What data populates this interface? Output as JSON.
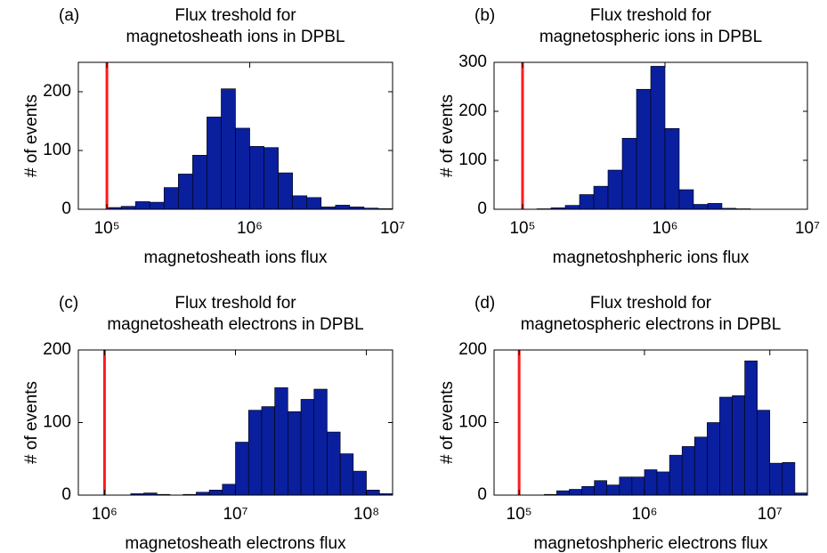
{
  "chart_data": [
    {
      "type": "histogram",
      "panel_label": "(a)",
      "title": [
        "Flux treshold for",
        "magnetosheath ions in DPBL"
      ],
      "xlabel": "magnetosheath ions flux",
      "ylabel": "# of events",
      "xscale": "log",
      "color": "#0a1f9e",
      "bins": [
        63096,
        79433,
        100000,
        125893,
        158489,
        199526,
        251189,
        316228,
        398107,
        501187,
        630957,
        794328,
        1000000,
        1258925,
        1584893,
        1995262,
        2511886,
        3162278,
        3981072,
        5011872,
        6309573,
        7943282,
        10000000
      ],
      "counts": [
        0,
        0,
        3,
        5,
        13,
        12,
        37,
        60,
        92,
        157,
        205,
        138,
        107,
        105,
        62,
        23,
        20,
        4,
        7,
        4,
        2,
        1
      ],
      "xlim": [
        63096,
        10000000
      ],
      "xticks": [
        {
          "value": 100000,
          "label": "10⁵"
        },
        {
          "value": 1000000,
          "label": "10⁶"
        },
        {
          "value": 10000000,
          "label": "10⁷"
        }
      ],
      "ylim": [
        0,
        250
      ],
      "yticks": [
        0,
        100,
        200
      ],
      "threshold": 100000,
      "threshold_color": "#ff1a1a"
    },
    {
      "type": "histogram",
      "panel_label": "(b)",
      "title": [
        "Flux treshold for",
        "magnetospheric ions in DPBL"
      ],
      "xlabel": "magnetoshpheric ions flux",
      "ylabel": "# of events",
      "xscale": "log",
      "color": "#0a1f9e",
      "bins": [
        63096,
        79433,
        100000,
        125893,
        158489,
        199526,
        251189,
        316228,
        398107,
        501187,
        630957,
        794328,
        1000000,
        1258925,
        1584893,
        1995262,
        2511886,
        3162278,
        3981072,
        5011872,
        6309573,
        7943282,
        10000000
      ],
      "counts": [
        0,
        0,
        0,
        1,
        3,
        8,
        30,
        47,
        80,
        145,
        245,
        292,
        165,
        40,
        10,
        12,
        2,
        1,
        0,
        0,
        0,
        0
      ],
      "xlim": [
        63096,
        10000000
      ],
      "xticks": [
        {
          "value": 100000,
          "label": "10⁵"
        },
        {
          "value": 1000000,
          "label": "10⁶"
        },
        {
          "value": 10000000,
          "label": "10⁷"
        }
      ],
      "ylim": [
        0,
        300
      ],
      "yticks": [
        0,
        100,
        200,
        300
      ],
      "threshold": 100000,
      "threshold_color": "#ff1a1a"
    },
    {
      "type": "histogram",
      "panel_label": "(c)",
      "title": [
        "Flux treshold for",
        "magnetosheath electrons in DPBL"
      ],
      "xlabel": "magnetosheath electrons flux",
      "ylabel": "# of events",
      "xscale": "log",
      "color": "#0a1f9e",
      "bins": [
        630957,
        794328,
        1000000,
        1258925,
        1584893,
        1995262,
        2511886,
        3162278,
        3981072,
        5011872,
        6309573,
        7943282,
        10000000,
        12589254,
        15848932,
        19952623,
        25118864,
        31622777,
        39810717,
        50118723,
        63095734,
        79432823,
        100000000,
        125892541,
        158489319
      ],
      "counts": [
        0,
        0,
        0,
        0,
        2,
        3,
        1,
        0,
        1,
        4,
        7,
        15,
        73,
        117,
        122,
        148,
        115,
        132,
        146,
        87,
        57,
        33,
        7,
        2
      ],
      "xlim": [
        630957,
        158489319
      ],
      "xticks": [
        {
          "value": 1000000,
          "label": "10⁶"
        },
        {
          "value": 10000000,
          "label": "10⁷"
        },
        {
          "value": 100000000,
          "label": "10⁸"
        }
      ],
      "ylim": [
        0,
        200
      ],
      "yticks": [
        0,
        100,
        200
      ],
      "threshold": 1000000,
      "threshold_color": "#ff1a1a"
    },
    {
      "type": "histogram",
      "panel_label": "(d)",
      "title": [
        "Flux treshold for",
        "magnetospheric electrons in DPBL"
      ],
      "xlabel": "magnetoshpheric electrons flux",
      "ylabel": "# of events",
      "xscale": "log",
      "color": "#0a1f9e",
      "bins": [
        63096,
        79433,
        100000,
        125893,
        158489,
        199526,
        251189,
        316228,
        398107,
        501187,
        630957,
        794328,
        1000000,
        1258925,
        1584893,
        1995262,
        2511886,
        3162278,
        3981072,
        5011872,
        6309573,
        7943282,
        10000000,
        12589254,
        15848932,
        19952623
      ],
      "counts": [
        0,
        0,
        0,
        0,
        1,
        6,
        8,
        12,
        20,
        14,
        25,
        25,
        35,
        32,
        55,
        67,
        80,
        100,
        135,
        137,
        185,
        117,
        44,
        45,
        3
      ],
      "xlim": [
        63096,
        19952623
      ],
      "xticks": [
        {
          "value": 100000,
          "label": "10⁵"
        },
        {
          "value": 1000000,
          "label": "10⁶"
        },
        {
          "value": 10000000,
          "label": "10⁷"
        }
      ],
      "ylim": [
        0,
        200
      ],
      "yticks": [
        0,
        100,
        200
      ],
      "threshold": 100000,
      "threshold_color": "#ff1a1a"
    }
  ]
}
